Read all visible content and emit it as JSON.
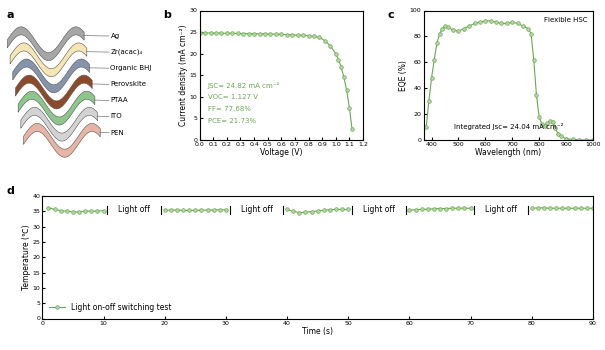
{
  "diagram": {
    "label": "a",
    "layers": [
      "Ag",
      "Zr(acac)₄",
      "Organic BHJ",
      "Perovskite",
      "PTAA",
      "ITO",
      "PEN"
    ]
  },
  "chart_data": [
    {
      "label": "b",
      "type": "line",
      "x_label": "Voltage (V)",
      "y_label": "Current density (mA cm⁻²)",
      "annotations": [
        "JSC= 24.82 mA cm⁻²",
        "VOC= 1.127 V",
        "FF= 77.68%",
        "PCE= 21.73%"
      ],
      "x": [
        0.0,
        0.04,
        0.08,
        0.12,
        0.16,
        0.2,
        0.24,
        0.28,
        0.32,
        0.36,
        0.4,
        0.44,
        0.48,
        0.52,
        0.56,
        0.6,
        0.64,
        0.68,
        0.72,
        0.76,
        0.8,
        0.84,
        0.88,
        0.92,
        0.96,
        1.0,
        1.02,
        1.04,
        1.06,
        1.08,
        1.1,
        1.12
      ],
      "values": [
        24.82,
        24.8,
        24.78,
        24.76,
        24.74,
        24.72,
        24.7,
        24.68,
        24.66,
        24.64,
        24.62,
        24.6,
        24.57,
        24.54,
        24.5,
        24.46,
        24.42,
        24.37,
        24.3,
        24.22,
        24.12,
        24.0,
        23.8,
        23.0,
        21.8,
        20.0,
        18.6,
        16.8,
        14.5,
        11.5,
        7.5,
        2.5
      ],
      "color": "#6aa84f",
      "marker": "circle",
      "xlim": [
        0.0,
        1.2
      ],
      "xticks": [
        0.0,
        0.1,
        0.2,
        0.3,
        0.4,
        0.5,
        0.6,
        0.7,
        0.8,
        0.9,
        1.0,
        1.1,
        1.2
      ],
      "ylim": [
        0,
        30
      ],
      "yticks": [
        0,
        5,
        10,
        15,
        20,
        25,
        30
      ]
    },
    {
      "label": "c",
      "type": "line",
      "x_label": "Wavelength (nm)",
      "y_label": "EQE (%)",
      "annotations": [
        "Flexible HSC",
        "Integrated Jsc= 24.04 mA cm⁻²"
      ],
      "x": [
        380,
        390,
        400,
        410,
        420,
        430,
        440,
        450,
        460,
        480,
        500,
        520,
        540,
        560,
        580,
        600,
        620,
        640,
        660,
        680,
        700,
        720,
        740,
        760,
        770,
        780,
        790,
        800,
        810,
        820,
        830,
        840,
        850,
        860,
        870,
        880,
        900,
        925,
        950,
        975,
        1000
      ],
      "values": [
        10,
        30,
        48,
        62,
        75,
        82,
        86,
        88,
        87,
        85,
        84,
        86,
        88,
        90,
        91,
        92,
        92,
        91,
        90,
        90,
        91,
        90,
        88,
        86,
        82,
        62,
        35,
        18,
        12,
        11,
        13,
        15,
        14,
        9,
        5,
        3,
        1,
        0.5,
        0,
        0,
        0
      ],
      "color": "#6aa84f",
      "marker": "circle",
      "xlim": [
        370,
        1000
      ],
      "xticks": [
        400,
        500,
        600,
        700,
        800,
        900,
        1000
      ],
      "ylim": [
        0,
        100
      ],
      "yticks": [
        0,
        20,
        40,
        60,
        80,
        100
      ]
    },
    {
      "label": "d",
      "type": "line",
      "x_label": "Time (s)",
      "y_label": "Temperature (℃)",
      "legend": "lower left",
      "annotations": [
        {
          "text": "Light off",
          "x": 15,
          "y": 35.5
        },
        {
          "text": "Light off",
          "x": 35,
          "y": 35.5
        },
        {
          "text": "Light off",
          "x": 55,
          "y": 35.5
        },
        {
          "text": "Light off",
          "x": 75,
          "y": 35.5
        }
      ],
      "x": [
        1,
        2,
        3,
        4,
        5,
        6,
        7,
        8,
        9,
        10,
        15,
        20,
        21,
        22,
        23,
        24,
        25,
        26,
        27,
        28,
        29,
        30,
        35,
        40,
        41,
        42,
        43,
        44,
        45,
        46,
        47,
        48,
        49,
        50,
        55,
        60,
        61,
        62,
        63,
        64,
        65,
        66,
        67,
        68,
        69,
        70,
        75,
        80,
        81,
        82,
        83,
        84,
        85,
        86,
        87,
        88,
        89,
        90
      ],
      "series": [
        {
          "name": "Light on-off switching test",
          "color": "#6aa84f",
          "marker": "circle",
          "values": [
            36.2,
            35.6,
            35.2,
            35.0,
            34.8,
            34.8,
            35.0,
            35.0,
            35.1,
            35.2,
            null,
            35.3,
            35.4,
            35.4,
            35.3,
            35.3,
            35.3,
            35.4,
            35.4,
            35.4,
            35.5,
            35.5,
            null,
            35.6,
            35.0,
            34.6,
            34.7,
            34.9,
            35.1,
            35.3,
            35.5,
            35.6,
            35.6,
            35.6,
            null,
            35.4,
            35.5,
            35.6,
            35.7,
            35.8,
            35.9,
            35.9,
            36.0,
            36.0,
            36.0,
            36.0,
            null,
            36.0,
            36.1,
            36.1,
            36.0,
            36.0,
            36.0,
            36.0,
            36.0,
            36.0,
            36.0,
            36.0
          ]
        }
      ],
      "xlim": [
        0,
        90
      ],
      "xticks": [
        0,
        10,
        20,
        30,
        40,
        50,
        60,
        70,
        80,
        90
      ],
      "ylim": [
        0,
        40
      ],
      "yticks": [
        0,
        5,
        10,
        15,
        20,
        25,
        30,
        35,
        40
      ]
    }
  ]
}
